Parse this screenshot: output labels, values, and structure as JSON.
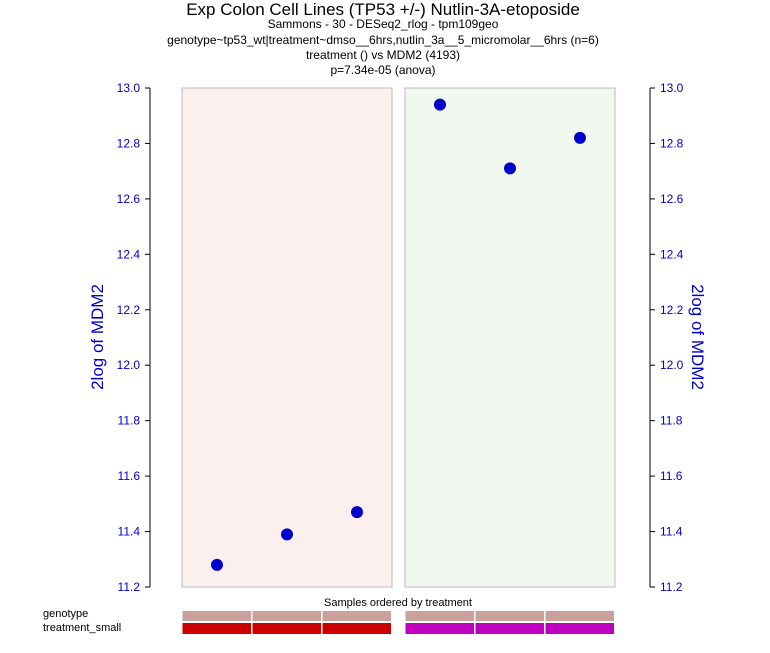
{
  "chart_data": {
    "type": "scatter",
    "title": "Exp Colon Cell Lines (TP53 +/-) Nutlin-3A-etoposide",
    "subtitle_lines": [
      "Sammons - 30 - DESeq2_rlog - tpm109geo",
      "genotype~tp53_wt|treatment~dmso__6hrs,nutlin_3a__5_micromolar__6hrs (n=6)",
      "treatment () vs MDM2 (4193)",
      "p=7.34e-05 (anova)"
    ],
    "ylabel": "2log of MDM2",
    "ylabel_right": "2log of MDM2",
    "xlabel": "Samples ordered by treatment",
    "ylim": [
      11.2,
      13.0
    ],
    "yticks": [
      "11.2",
      "11.4",
      "11.6",
      "11.8",
      "12.0",
      "12.2",
      "12.4",
      "12.6",
      "12.8",
      "13.0"
    ],
    "grid": false,
    "groups": [
      {
        "background": "#fbf0ee",
        "bar_color": "#cc0000",
        "genotype_color": "#c8a09c",
        "x": [
          1,
          2,
          3
        ],
        "values": [
          11.28,
          11.39,
          11.47
        ]
      },
      {
        "background": "#f0f8ef",
        "bar_color": "#c000c0",
        "genotype_color": "#c8a09c",
        "x": [
          1,
          2,
          3
        ],
        "values": [
          12.94,
          12.71,
          12.82
        ]
      }
    ],
    "point_color": "#0000cc",
    "tick_label_color": "#0000cc",
    "annotation_rows": [
      "genotype",
      "treatment_small"
    ]
  }
}
